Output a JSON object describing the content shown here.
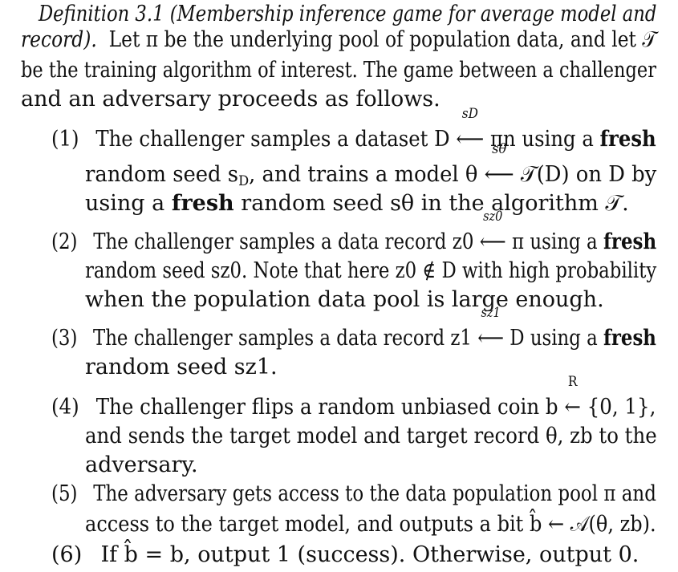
{
  "definition": {
    "title": "Definition 3.1 (Membership inference game for average model and",
    "title_cont": "record).",
    "intro_1": "Let π be the underlying pool of population data, and let 𝒯",
    "intro_2": "be the training algorithm of interest. The game between a challenger",
    "intro_3": "and an adversary proceeds as follows."
  },
  "steps": [
    {
      "num": "(1)",
      "l1a": "The challenger samples a dataset D",
      "l1arrow_label": "sD",
      "l1b": "πn using a",
      "l1bold": "fresh",
      "l2a": "random seed s",
      "l2sub": "D",
      "l2b": ", and trains a model θ",
      "l2arrow_label": "sθ",
      "l2c": "𝒯(D) on D by",
      "l3a": "using a",
      "l3bold": "fresh",
      "l3b": "random seed sθ in the algorithm 𝒯."
    },
    {
      "num": "(2)",
      "l1a": "The challenger samples a data record z0",
      "l1arrow_label": "sz0",
      "l1b": "π using a",
      "l1bold": "fresh",
      "l2": "random seed sz0. Note that here z0 ∉ D with high probability",
      "l3": "when the population data pool is large enough."
    },
    {
      "num": "(3)",
      "l1a": "The challenger samples a data record z1",
      "l1arrow_label": "sz1",
      "l1b": "D using a",
      "l1bold": "fresh",
      "l2": "random seed sz1."
    },
    {
      "num": "(4)",
      "l1a": "The challenger flips a random unbiased coin b",
      "l1arrow_label": "R",
      "l1b": "{0, 1},",
      "l2": "and sends the target model and target record θ, zb to the",
      "l3": "adversary."
    },
    {
      "num": "(5)",
      "l1": "The adversary gets access to the data population pool π and",
      "l2": "access to the target model, and outputs a bit b̂ ← 𝒜(θ, zb)."
    },
    {
      "num": "(6)",
      "l1": "If b̂ = b, output 1 (success). Otherwise, output 0."
    }
  ]
}
